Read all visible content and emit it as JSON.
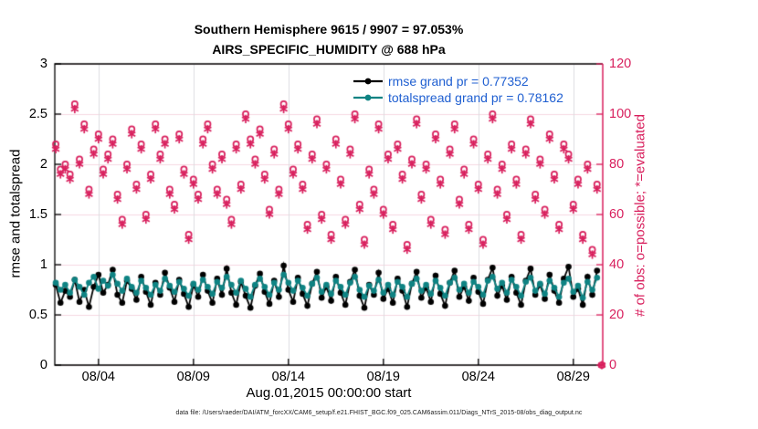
{
  "colors": {
    "pink": "#d81e5c",
    "grid_pink": "#f6d9e2",
    "grid_gray": "#dcdce0",
    "teal": "#0e8383",
    "black": "#000000",
    "legend_text": "#1f5fd1"
  },
  "footer": {
    "datafile": "data file: /Users/raeder/DAI/ATM_forcXX/CAM6_setup/f.e21.FHIST_BGC.f09_025.CAM6assim.011/Diags_NTrS_2015-08/obs_diag_output.nc"
  },
  "chart_data": {
    "type": "line",
    "title": "Southern Hemisphere 9615 / 9907 = 97.053%",
    "subtitle": "AIRS_SPECIFIC_HUMIDITY @ 688 hPa",
    "xlabel": "Aug.01,2015 00:00:00 start",
    "ylabel_left": "rmse and totalspread",
    "ylabel_right": "# of obs: o=possible; *=evaluated",
    "grid": true,
    "legend_position": "top-right-inside",
    "x_axis": {
      "start_day": 0.75,
      "step_day": 0.25,
      "range_days": [
        0.7,
        29.55
      ],
      "tick_days": [
        3,
        8,
        13,
        18,
        23,
        28
      ],
      "tick_labels": [
        "08/04",
        "08/09",
        "08/14",
        "08/19",
        "08/24",
        "08/29"
      ]
    },
    "y_left": {
      "range": [
        0,
        3
      ],
      "ticks": [
        0,
        0.5,
        1,
        1.5,
        2,
        2.5,
        3
      ]
    },
    "y_right": {
      "range": [
        0,
        120
      ],
      "ticks": [
        0,
        20,
        40,
        60,
        80,
        100,
        120
      ]
    },
    "series": [
      {
        "name": "rmse",
        "legend": "rmse grand pr = 0.77352",
        "axis": "left",
        "color": "#000000",
        "marker": "filled-circle",
        "line": true,
        "values": [
          0.8,
          0.62,
          0.74,
          0.68,
          0.85,
          0.63,
          0.75,
          0.58,
          0.78,
          0.9,
          0.72,
          0.8,
          0.95,
          0.7,
          0.62,
          0.84,
          0.76,
          0.65,
          0.88,
          0.73,
          0.6,
          0.82,
          0.7,
          0.92,
          0.77,
          0.63,
          0.85,
          0.71,
          0.58,
          0.8,
          0.68,
          0.9,
          0.74,
          0.62,
          0.86,
          0.7,
          0.96,
          0.72,
          0.6,
          0.83,
          0.69,
          0.57,
          0.79,
          0.91,
          0.73,
          0.61,
          0.84,
          0.68,
          0.99,
          0.75,
          0.63,
          0.87,
          0.71,
          0.59,
          0.81,
          0.93,
          0.67,
          0.78,
          0.64,
          0.88,
          0.72,
          0.6,
          0.83,
          0.95,
          0.69,
          0.57,
          0.8,
          0.7,
          0.92,
          0.66,
          0.76,
          0.62,
          0.86,
          0.74,
          0.58,
          0.81,
          0.93,
          0.67,
          0.77,
          0.63,
          0.89,
          0.71,
          0.59,
          0.82,
          0.94,
          0.68,
          0.78,
          0.64,
          0.87,
          0.73,
          0.61,
          0.85,
          0.97,
          0.69,
          0.79,
          0.65,
          0.88,
          0.72,
          0.6,
          0.84,
          0.96,
          0.7,
          0.8,
          0.66,
          0.9,
          0.74,
          0.62,
          0.86,
          0.98,
          0.68,
          0.76,
          0.6,
          0.88,
          0.7,
          0.94,
          null
        ]
      },
      {
        "name": "totalspread",
        "legend": "totalspread grand pr = 0.78162",
        "axis": "left",
        "color": "#0e8383",
        "marker": "filled-circle",
        "line": true,
        "values": [
          0.82,
          0.75,
          0.8,
          0.72,
          0.85,
          0.78,
          0.7,
          0.82,
          0.88,
          0.76,
          0.84,
          0.79,
          0.9,
          0.81,
          0.74,
          0.86,
          0.78,
          0.72,
          0.84,
          0.77,
          0.7,
          0.8,
          0.74,
          0.86,
          0.79,
          0.73,
          0.83,
          0.76,
          0.69,
          0.81,
          0.75,
          0.85,
          0.78,
          0.71,
          0.83,
          0.77,
          0.88,
          0.8,
          0.72,
          0.84,
          0.76,
          0.68,
          0.8,
          0.86,
          0.78,
          0.7,
          0.82,
          0.75,
          0.9,
          0.82,
          0.74,
          0.84,
          0.77,
          0.69,
          0.81,
          0.87,
          0.73,
          0.8,
          0.71,
          0.84,
          0.78,
          0.7,
          0.82,
          0.88,
          0.75,
          0.68,
          0.79,
          0.74,
          0.85,
          0.72,
          0.8,
          0.7,
          0.83,
          0.78,
          0.68,
          0.81,
          0.86,
          0.74,
          0.8,
          0.71,
          0.84,
          0.77,
          0.69,
          0.82,
          0.87,
          0.75,
          0.81,
          0.72,
          0.83,
          0.78,
          0.7,
          0.84,
          0.88,
          0.76,
          0.82,
          0.72,
          0.85,
          0.78,
          0.69,
          0.83,
          0.87,
          0.74,
          0.81,
          0.71,
          0.84,
          0.77,
          0.68,
          0.82,
          0.86,
          0.73,
          0.79,
          0.67,
          0.83,
          0.75,
          0.87,
          null
        ]
      },
      {
        "name": "possible-obs",
        "legend": null,
        "axis": "right",
        "color": "#d81e5c",
        "marker": "open-circle",
        "line": false,
        "values": [
          88,
          78,
          80,
          76,
          104,
          82,
          96,
          70,
          86,
          92,
          78,
          84,
          90,
          68,
          58,
          80,
          94,
          72,
          88,
          60,
          76,
          96,
          84,
          90,
          70,
          64,
          92,
          78,
          52,
          74,
          68,
          90,
          96,
          80,
          70,
          84,
          66,
          58,
          88,
          72,
          100,
          90,
          82,
          94,
          76,
          62,
          86,
          70,
          104,
          96,
          78,
          88,
          72,
          56,
          84,
          98,
          60,
          80,
          52,
          90,
          74,
          58,
          86,
          100,
          64,
          50,
          78,
          70,
          96,
          62,
          84,
          56,
          88,
          76,
          48,
          82,
          98,
          68,
          80,
          58,
          92,
          74,
          54,
          86,
          96,
          66,
          78,
          56,
          90,
          72,
          50,
          84,
          100,
          70,
          80,
          60,
          88,
          74,
          52,
          86,
          98,
          68,
          82,
          62,
          92,
          76,
          56,
          88,
          84,
          64,
          74,
          52,
          80,
          46,
          72,
          0
        ]
      },
      {
        "name": "evaluated-obs",
        "legend": null,
        "axis": "right",
        "color": "#d81e5c",
        "marker": "asterisk",
        "line": false,
        "values": [
          86,
          76,
          78,
          74,
          102,
          80,
          94,
          68,
          84,
          90,
          76,
          82,
          88,
          66,
          56,
          78,
          92,
          70,
          86,
          58,
          74,
          94,
          82,
          88,
          68,
          62,
          90,
          76,
          50,
          72,
          66,
          88,
          94,
          78,
          68,
          82,
          64,
          56,
          86,
          70,
          98,
          88,
          80,
          92,
          74,
          60,
          84,
          68,
          102,
          94,
          76,
          86,
          70,
          54,
          82,
          96,
          58,
          78,
          50,
          88,
          72,
          56,
          84,
          98,
          62,
          48,
          76,
          68,
          94,
          60,
          82,
          54,
          86,
          74,
          46,
          80,
          96,
          66,
          78,
          56,
          90,
          72,
          52,
          84,
          94,
          64,
          76,
          54,
          88,
          70,
          48,
          82,
          98,
          68,
          78,
          58,
          86,
          72,
          50,
          84,
          96,
          66,
          80,
          60,
          90,
          74,
          54,
          86,
          82,
          62,
          72,
          50,
          78,
          44,
          70,
          0
        ]
      }
    ]
  }
}
